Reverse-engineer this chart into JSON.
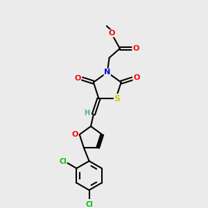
{
  "bg_color": "#ebebeb",
  "bond_color": "#000000",
  "atom_colors": {
    "O": "#ff0000",
    "N": "#0000cc",
    "S": "#cccc00",
    "Cl": "#00bb00",
    "H": "#44aaaa",
    "C": "#000000"
  },
  "font_size_atoms": 8,
  "figsize": [
    3.0,
    3.0
  ],
  "dpi": 100
}
